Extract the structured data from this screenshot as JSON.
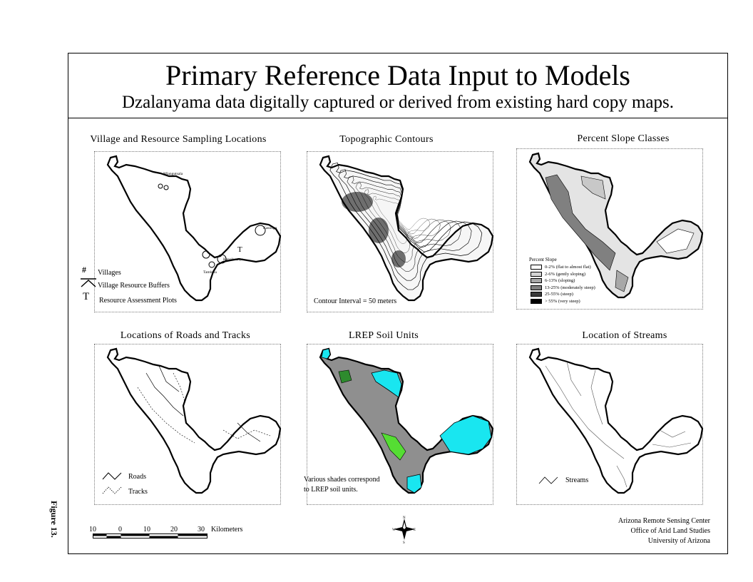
{
  "title": "Primary Reference Data Input to Models",
  "subtitle": "Dzalanyama data digitally captured or derived from existing hard copy maps.",
  "panels": {
    "villages": {
      "title": "Village and Resource Sampling Locations",
      "place_labels": [
        "Mlangutsala",
        "Kasonga",
        "Kapalasanya",
        "Tambala"
      ],
      "legend": [
        "Villages",
        "Village Resource Buffers",
        "Resource Assessment Plots"
      ],
      "legend_symbols": [
        "#",
        "T"
      ]
    },
    "contours": {
      "title": "Topographic Contours",
      "note": "Contour Interval = 50 meters"
    },
    "slope": {
      "title": "Percent Slope Classes",
      "legend_title": "Percent Slope",
      "legend": [
        {
          "label": "0-2% (flat to almost flat)",
          "color": "#ffffff"
        },
        {
          "label": "2-6% (gently sloping)",
          "color": "#d4d4d4"
        },
        {
          "label": "6-13% (sloping)",
          "color": "#a8a8a8"
        },
        {
          "label": "13-25% (moderately steep)",
          "color": "#808080"
        },
        {
          "label": "25-55% (steep)",
          "color": "#3a3a3a"
        },
        {
          "label": "> 55% (very steep)",
          "color": "#000000"
        }
      ]
    },
    "roads": {
      "title": "Locations of Roads and Tracks",
      "legend": [
        "Roads",
        "Tracks"
      ]
    },
    "soils": {
      "title": "LREP Soil Units",
      "note_line1": "Various shades correspond",
      "note_line2": "to LREP soil units.",
      "colors": {
        "gray": "#8f8f8f",
        "cyan": "#19e6f0",
        "green": "#2e8b2e",
        "lightgreen": "#55dd33"
      }
    },
    "streams": {
      "title": "Location of Streams",
      "legend": [
        "Streams"
      ]
    }
  },
  "scale_bar": {
    "ticks": [
      "10",
      "0",
      "10",
      "20",
      "30"
    ],
    "unit": "Kilometers"
  },
  "north_arrow": {
    "n": "N",
    "s": "S",
    "e": "E",
    "w": "W"
  },
  "figure_label": "Figure 13.",
  "credits": [
    "Arizona Remote Sensing Center",
    "Office of Arid Land Studies",
    "University of Arizona"
  ]
}
